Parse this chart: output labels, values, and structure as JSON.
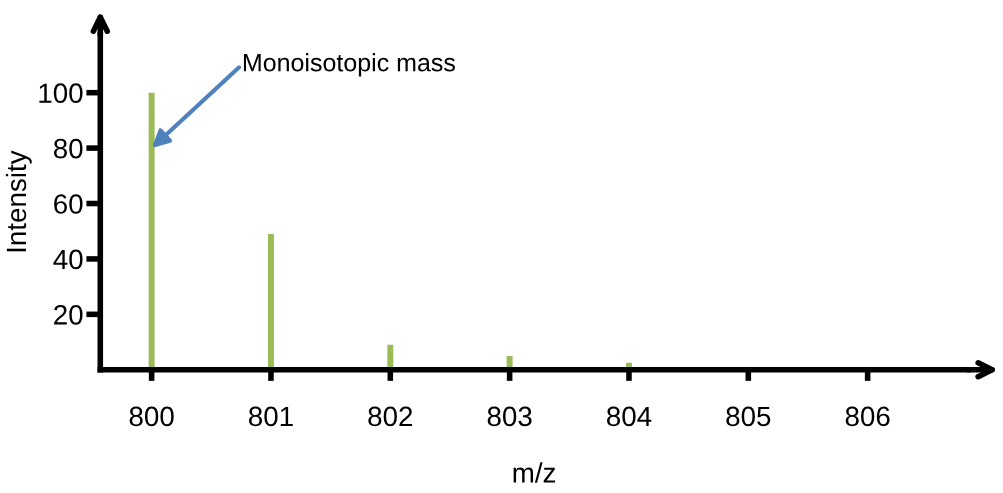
{
  "chart_data": {
    "type": "bar",
    "xlabel": "m/z",
    "ylabel": "Intensity",
    "x": [
      800,
      801,
      802,
      803,
      804
    ],
    "values": [
      100,
      49,
      9,
      5,
      2.5
    ],
    "color": "#9bbb59",
    "xlim": [
      799.57,
      806.84
    ],
    "xticks": [
      800,
      801,
      802,
      803,
      804,
      805,
      806
    ],
    "ylim": [
      0,
      121
    ],
    "yticks": [
      20,
      40,
      60,
      80,
      100
    ],
    "grid": false,
    "annotations": [
      {
        "text": "Monoisotopic mass",
        "x": 800,
        "y": 80
      }
    ]
  }
}
